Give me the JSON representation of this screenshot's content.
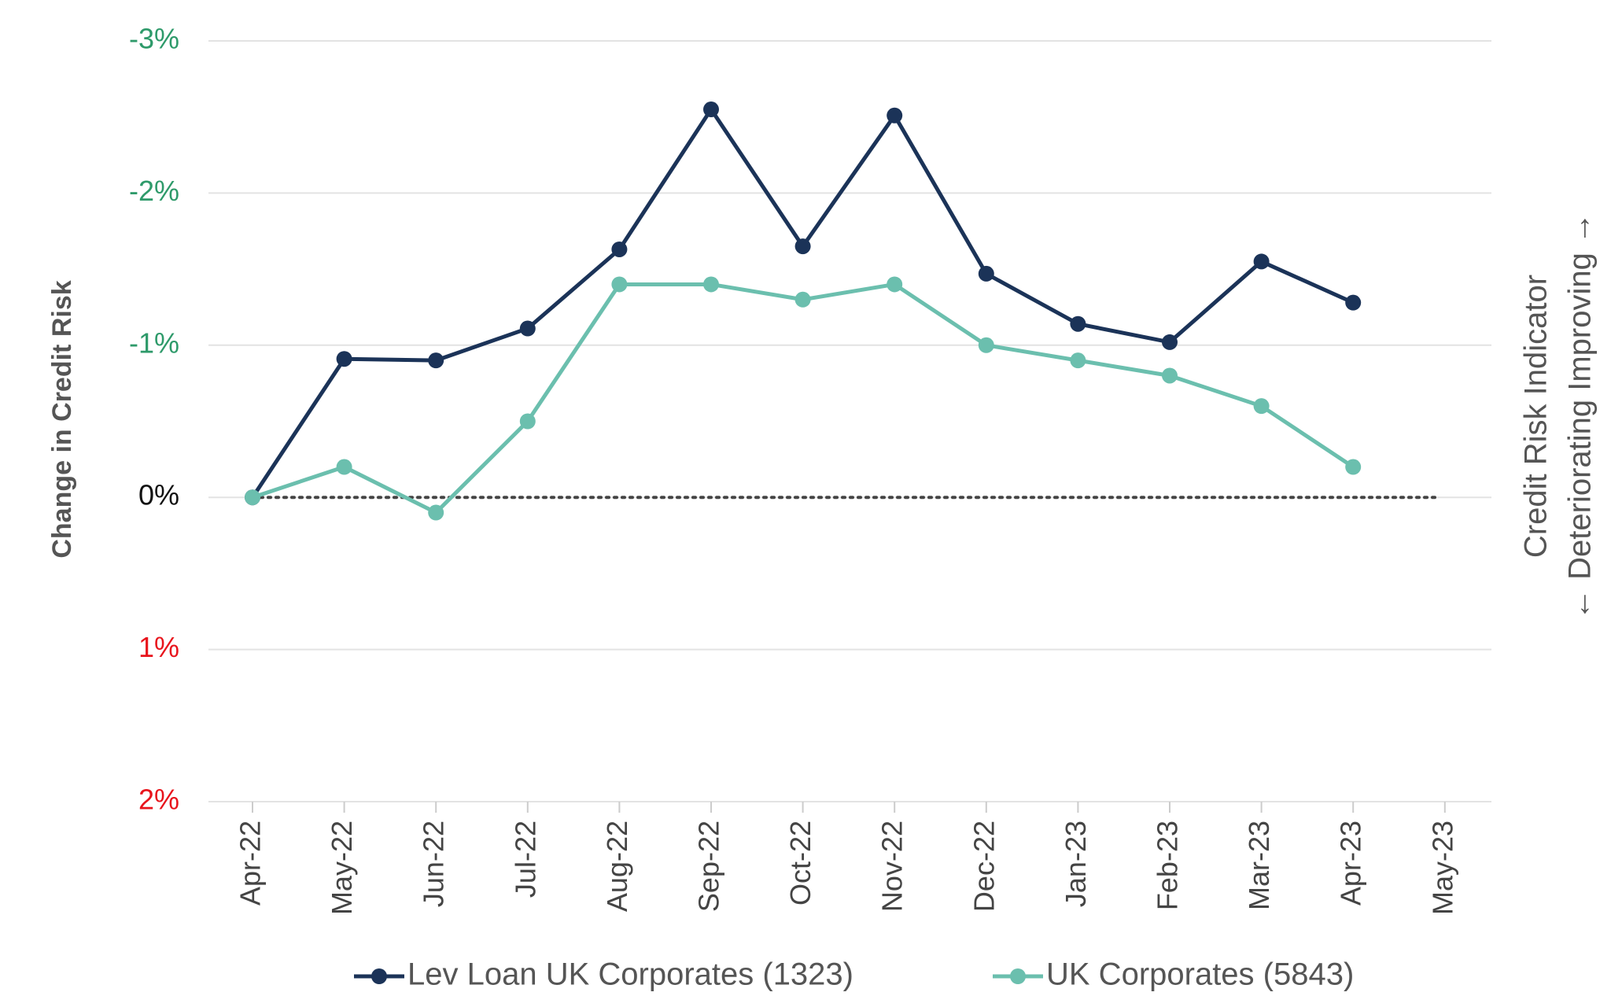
{
  "chart_data": {
    "type": "line",
    "y_axis_label": "Change in Credit Risk",
    "right_label": "Credit Risk Indicator",
    "right_direction": "← Deteriorating Improving →",
    "categories": [
      "Apr-22",
      "May-22",
      "Jun-22",
      "Jul-22",
      "Aug-22",
      "Sep-22",
      "Oct-22",
      "Nov-22",
      "Dec-22",
      "Jan-23",
      "Feb-23",
      "Mar-23",
      "Apr-23",
      "May-23"
    ],
    "series": [
      {
        "name": "Lev Loan UK Corporates (1323)",
        "color": "#1b3358",
        "values": [
          0,
          -0.91,
          -0.9,
          -1.11,
          -1.63,
          -2.55,
          -1.65,
          -2.51,
          -1.47,
          -1.14,
          -1.02,
          -1.55,
          -1.28,
          null
        ]
      },
      {
        "name": "UK Corporates (5843)",
        "color": "#6bbfae",
        "values": [
          0,
          -0.2,
          0.1,
          -0.5,
          -1.4,
          -1.4,
          -1.3,
          -1.4,
          -1.0,
          -0.9,
          -0.8,
          -0.6,
          -0.2,
          null
        ]
      }
    ],
    "ylim": [
      -3,
      2
    ],
    "y_inverted": true,
    "yticks": [
      {
        "value": -3,
        "label": "-3%"
      },
      {
        "value": -2,
        "label": "-2%"
      },
      {
        "value": -1,
        "label": "-1%"
      },
      {
        "value": 0,
        "label": "0%"
      },
      {
        "value": 1,
        "label": "1%"
      },
      {
        "value": 2,
        "label": "2%"
      }
    ],
    "ytick_colors": [
      "#2e9a6a",
      "#2e9a6a",
      "#2e9a6a",
      "#111111",
      "#e8141c",
      "#e8141c"
    ],
    "grid": true,
    "legend": "bottom"
  }
}
